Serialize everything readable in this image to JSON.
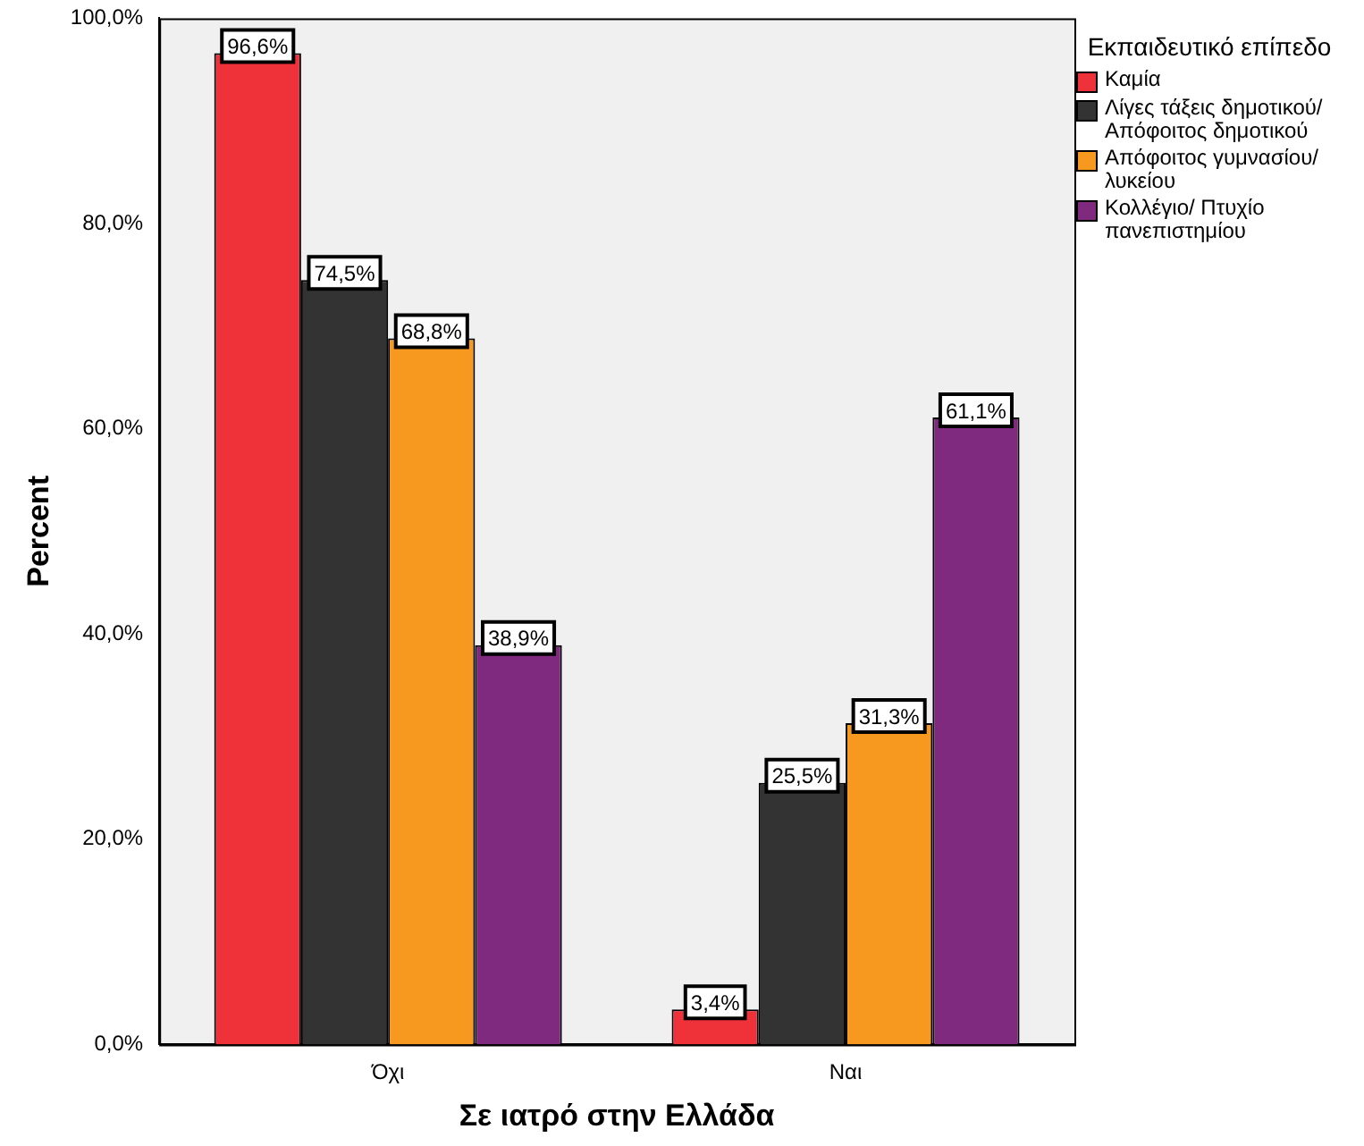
{
  "chart_data": {
    "type": "bar",
    "xlabel": "Σε ιατρό στην Ελλάδα",
    "ylabel": "Percent",
    "legend_title": "Εκπαιδευτικό επίπεδο",
    "categories": [
      "Όχι",
      "Ναι"
    ],
    "series": [
      {
        "name": "Καμία",
        "color": "#ef3139",
        "values": [
          96.6,
          3.4
        ],
        "value_labels": [
          "96,6%",
          "3,4%"
        ]
      },
      {
        "name": "Λίγες τάξεις δημοτικού/ Απόφοιτος δημοτικού",
        "color": "#333333",
        "values": [
          74.5,
          25.5
        ],
        "value_labels": [
          "74,5%",
          "25,5%"
        ]
      },
      {
        "name": "Απόφοιτος γυμνασίου/ λυκείου",
        "color": "#f7991f",
        "values": [
          68.8,
          31.3
        ],
        "value_labels": [
          "68,8%",
          "31,3%"
        ]
      },
      {
        "name": "Κολλέγιο/ Πτυχίο πανεπιστημίου",
        "color": "#7f2a7e",
        "values": [
          38.9,
          61.1
        ],
        "value_labels": [
          "38,9%",
          "61,1%"
        ]
      }
    ],
    "ylim": [
      0,
      100
    ],
    "yticks": [
      {
        "value": 0,
        "label": "0,0%"
      },
      {
        "value": 20,
        "label": "20,0%"
      },
      {
        "value": 40,
        "label": "40,0%"
      },
      {
        "value": 60,
        "label": "60,0%"
      },
      {
        "value": 80,
        "label": "80,0%"
      },
      {
        "value": 100,
        "label": "100,0%"
      }
    ],
    "grid": false,
    "legend": "right"
  }
}
